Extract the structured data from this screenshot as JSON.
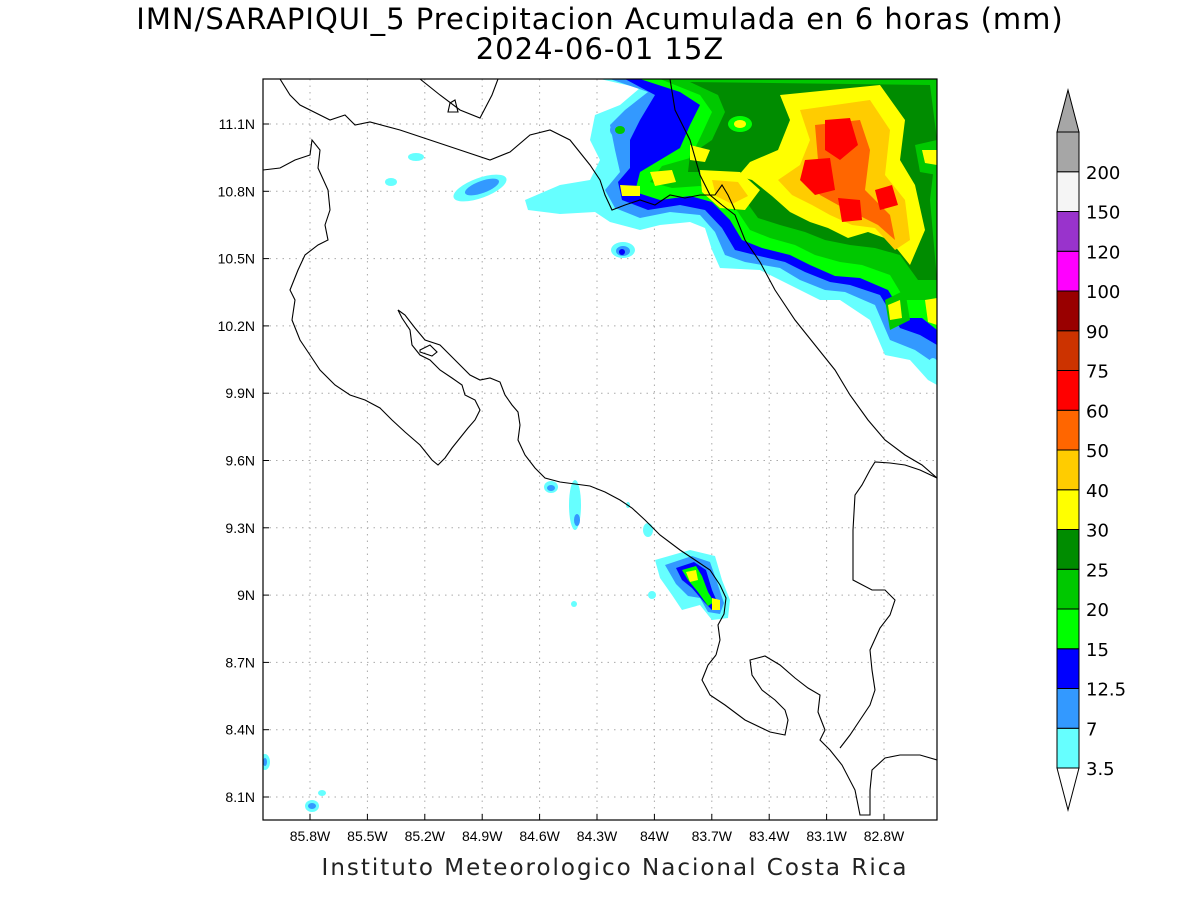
{
  "title_line1": "IMN/SARAPIQUI_5 Precipitacion Acumulada en 6 horas (mm)",
  "title_line2": "2024-06-01 15Z",
  "credit": "Instituto Meteorologico Nacional Costa Rica",
  "lat_ticks": [
    {
      "value": 11.1,
      "label": "11.1N"
    },
    {
      "value": 10.8,
      "label": "10.8N"
    },
    {
      "value": 10.5,
      "label": "10.5N"
    },
    {
      "value": 10.2,
      "label": "10.2N"
    },
    {
      "value": 9.9,
      "label": "9.9N"
    },
    {
      "value": 9.6,
      "label": "9.6N"
    },
    {
      "value": 9.3,
      "label": "9.3N"
    },
    {
      "value": 9.0,
      "label": "9N"
    },
    {
      "value": 8.7,
      "label": "8.7N"
    },
    {
      "value": 8.4,
      "label": "8.4N"
    },
    {
      "value": 8.1,
      "label": "8.1N"
    }
  ],
  "lon_ticks": [
    {
      "value": -85.8,
      "label": "85.8W"
    },
    {
      "value": -85.5,
      "label": "85.5W"
    },
    {
      "value": -85.2,
      "label": "85.2W"
    },
    {
      "value": -84.9,
      "label": "84.9W"
    },
    {
      "value": -84.6,
      "label": "84.6W"
    },
    {
      "value": -84.3,
      "label": "84.3W"
    },
    {
      "value": -84.0,
      "label": "84W"
    },
    {
      "value": -83.7,
      "label": "83.7W"
    },
    {
      "value": -83.4,
      "label": "83.4W"
    },
    {
      "value": -83.1,
      "label": "83.1W"
    },
    {
      "value": -82.8,
      "label": "82.8W"
    }
  ],
  "legend": {
    "bins": [
      {
        "label": "3.5",
        "color": "#66ffff"
      },
      {
        "label": "7",
        "color": "#3399ff"
      },
      {
        "label": "12.5",
        "color": "#0000ff"
      },
      {
        "label": "15",
        "color": "#00ff00"
      },
      {
        "label": "20",
        "color": "#00c800"
      },
      {
        "label": "25",
        "color": "#008c00"
      },
      {
        "label": "30",
        "color": "#ffff00"
      },
      {
        "label": "40",
        "color": "#ffcc00"
      },
      {
        "label": "50",
        "color": "#ff6600"
      },
      {
        "label": "60",
        "color": "#ff0000"
      },
      {
        "label": "75",
        "color": "#cc3300"
      },
      {
        "label": "90",
        "color": "#990000"
      },
      {
        "label": "100",
        "color": "#ff00ff"
      },
      {
        "label": "120",
        "color": "#9933cc"
      },
      {
        "label": "150",
        "color": "#f5f5f5"
      },
      {
        "label": "200",
        "color": "#a6a6a6"
      }
    ],
    "under_color": "#ffffff",
    "over_color": "#a6a6a6"
  }
}
